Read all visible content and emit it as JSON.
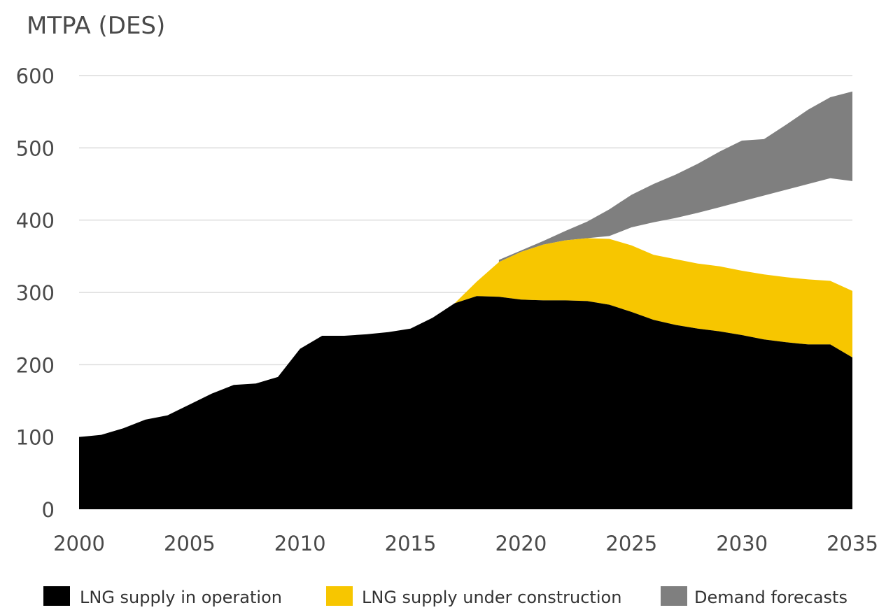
{
  "chart_data": {
    "type": "area",
    "title": "",
    "ylabel": "MTPA (DES)",
    "xlabel": "",
    "xlim": [
      2000,
      2035
    ],
    "ylim": [
      0,
      600
    ],
    "x_ticks": [
      2000,
      2005,
      2010,
      2015,
      2020,
      2025,
      2030,
      2035
    ],
    "y_ticks": [
      0,
      100,
      200,
      300,
      400,
      500,
      600
    ],
    "grid": true,
    "legend_position": "bottom",
    "series": [
      {
        "name": "LNG supply in operation",
        "color": "#000000",
        "points": [
          [
            2000,
            100
          ],
          [
            2001,
            103
          ],
          [
            2002,
            112
          ],
          [
            2003,
            124
          ],
          [
            2004,
            130
          ],
          [
            2005,
            145
          ],
          [
            2006,
            160
          ],
          [
            2007,
            172
          ],
          [
            2008,
            174
          ],
          [
            2009,
            183
          ],
          [
            2010,
            222
          ],
          [
            2011,
            240
          ],
          [
            2012,
            240
          ],
          [
            2013,
            242
          ],
          [
            2014,
            245
          ],
          [
            2015,
            250
          ],
          [
            2016,
            265
          ],
          [
            2017,
            285
          ],
          [
            2018,
            295
          ],
          [
            2019,
            294
          ],
          [
            2020,
            290
          ],
          [
            2021,
            289
          ],
          [
            2022,
            289
          ],
          [
            2023,
            288
          ],
          [
            2024,
            283
          ],
          [
            2025,
            273
          ],
          [
            2026,
            262
          ],
          [
            2027,
            255
          ],
          [
            2028,
            250
          ],
          [
            2029,
            246
          ],
          [
            2030,
            241
          ],
          [
            2031,
            235
          ],
          [
            2032,
            231
          ],
          [
            2033,
            228
          ],
          [
            2034,
            228
          ],
          [
            2035,
            210
          ]
        ]
      },
      {
        "name": "LNG supply under construction",
        "color": "#f7c600",
        "points": [
          [
            2017,
            285
          ],
          [
            2018,
            315
          ],
          [
            2019,
            342
          ],
          [
            2020,
            356
          ],
          [
            2021,
            366
          ],
          [
            2022,
            372
          ],
          [
            2023,
            375
          ],
          [
            2024,
            374
          ],
          [
            2025,
            365
          ],
          [
            2026,
            352
          ],
          [
            2027,
            346
          ],
          [
            2028,
            340
          ],
          [
            2029,
            336
          ],
          [
            2030,
            330
          ],
          [
            2031,
            325
          ],
          [
            2032,
            321
          ],
          [
            2033,
            318
          ],
          [
            2034,
            316
          ],
          [
            2035,
            302
          ]
        ]
      },
      {
        "name": "Demand forecasts",
        "color": "#7f7f7f",
        "lower": [
          [
            2019,
            342
          ],
          [
            2020,
            356
          ],
          [
            2021,
            366
          ],
          [
            2022,
            372
          ],
          [
            2023,
            375
          ],
          [
            2024,
            378
          ],
          [
            2025,
            390
          ],
          [
            2026,
            397
          ],
          [
            2027,
            403
          ],
          [
            2028,
            410
          ],
          [
            2029,
            418
          ],
          [
            2030,
            426
          ],
          [
            2031,
            434
          ],
          [
            2032,
            442
          ],
          [
            2033,
            450
          ],
          [
            2034,
            458
          ],
          [
            2035,
            454
          ]
        ],
        "upper": [
          [
            2019,
            345
          ],
          [
            2020,
            358
          ],
          [
            2021,
            371
          ],
          [
            2022,
            385
          ],
          [
            2023,
            398
          ],
          [
            2024,
            415
          ],
          [
            2025,
            435
          ],
          [
            2026,
            450
          ],
          [
            2027,
            463
          ],
          [
            2028,
            478
          ],
          [
            2029,
            495
          ],
          [
            2030,
            510
          ],
          [
            2031,
            512
          ],
          [
            2032,
            532
          ],
          [
            2033,
            553
          ],
          [
            2034,
            570
          ],
          [
            2035,
            578
          ]
        ]
      }
    ]
  }
}
